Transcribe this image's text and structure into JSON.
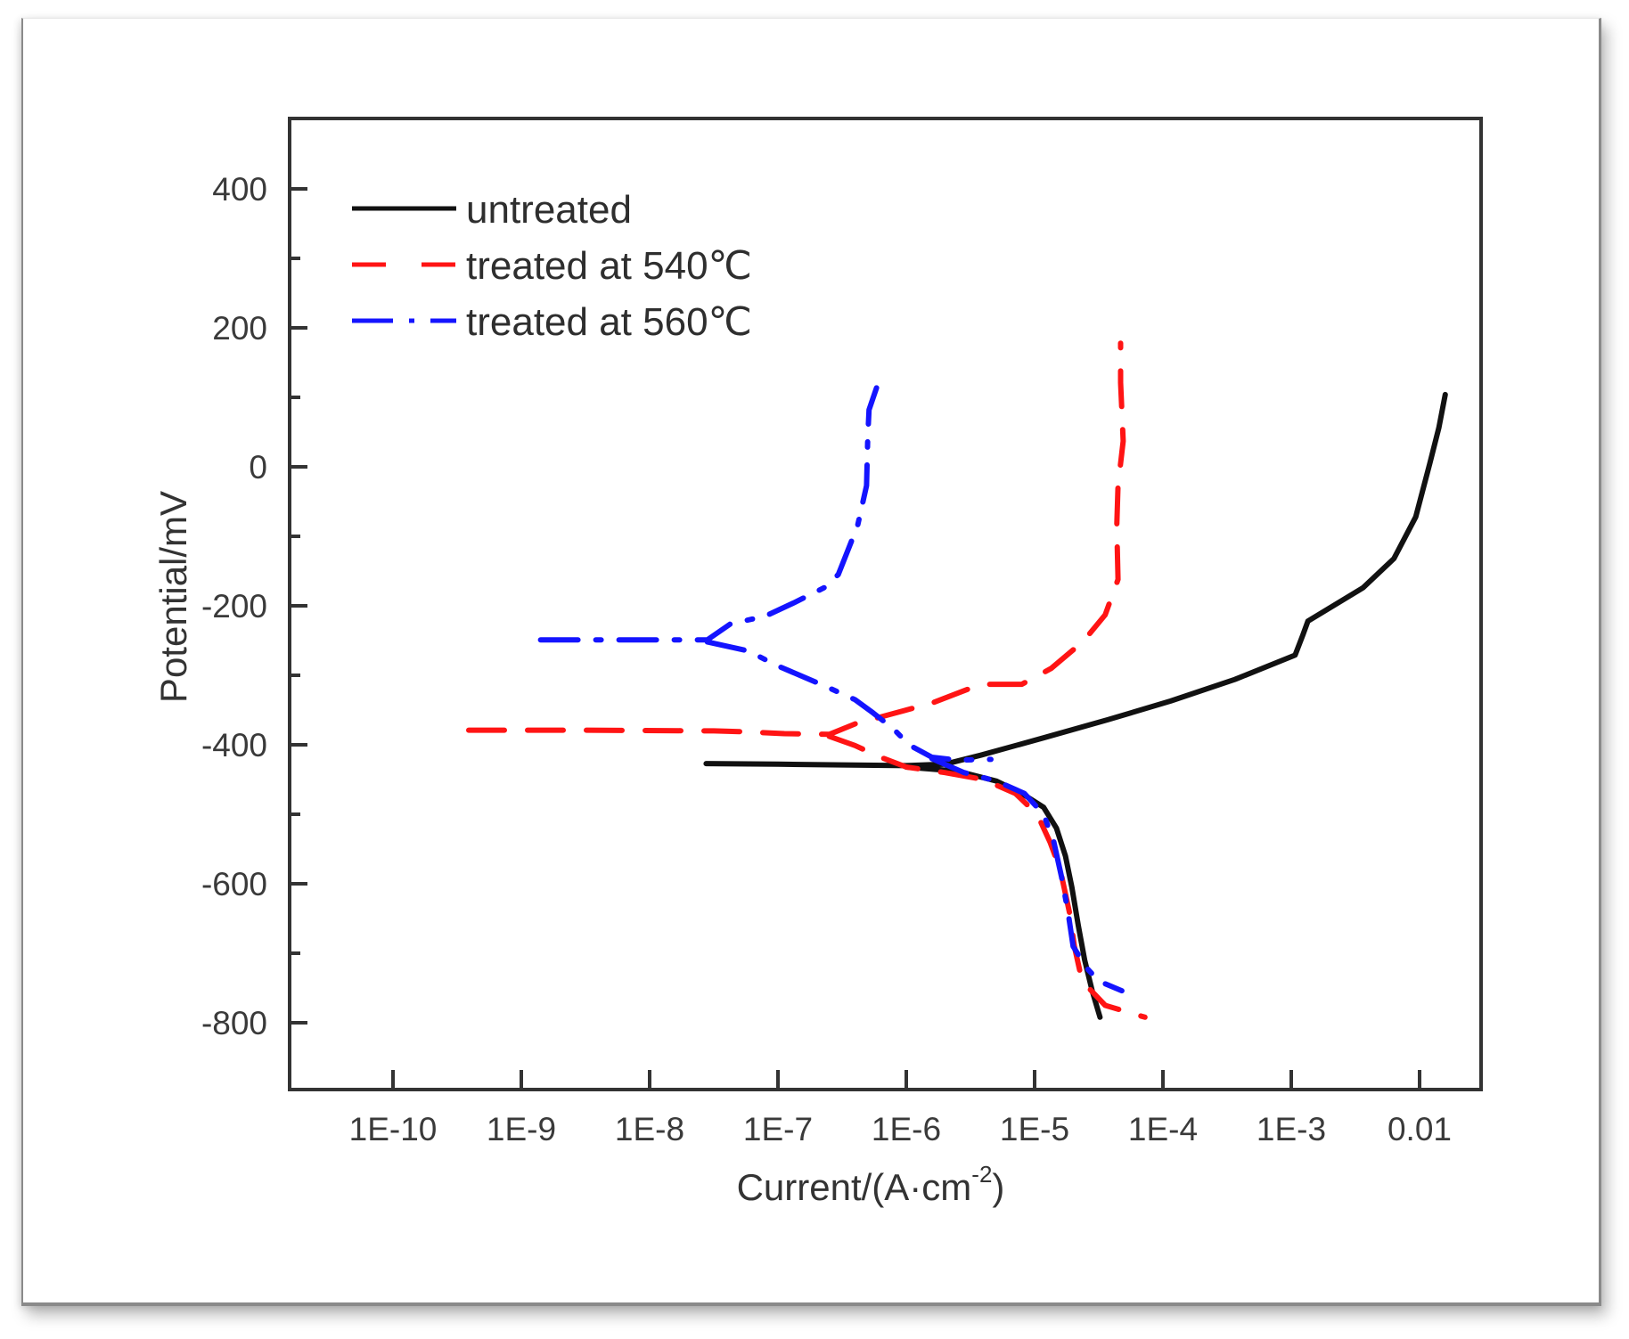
{
  "chart_data": {
    "type": "line",
    "title": "",
    "xlabel": "Current/(A·cm-2)",
    "xlabel_main": "Current/(A·cm",
    "xlabel_sup": "-2",
    "xlabel_close": ")",
    "ylabel": "Potential/mV",
    "xscale": "log",
    "xlim": [
      1.5e-11,
      0.03
    ],
    "ylim": [
      -900,
      500
    ],
    "grid": false,
    "legend_position": "upper left",
    "x_ticks": [
      {
        "value": -10,
        "label": "1E-10"
      },
      {
        "value": -9,
        "label": "1E-9"
      },
      {
        "value": -8,
        "label": "1E-8"
      },
      {
        "value": -7,
        "label": "1E-7"
      },
      {
        "value": -6,
        "label": "1E-6"
      },
      {
        "value": -5,
        "label": "1E-5"
      },
      {
        "value": -4,
        "label": "1E-4"
      },
      {
        "value": -3,
        "label": "1E-3"
      },
      {
        "value": -2,
        "label": "0.01"
      }
    ],
    "y_ticks": [
      {
        "value": 400,
        "label": "400"
      },
      {
        "value": 200,
        "label": "200"
      },
      {
        "value": 0,
        "label": "0"
      },
      {
        "value": -200,
        "label": "-200"
      },
      {
        "value": -400,
        "label": "-400"
      },
      {
        "value": -600,
        "label": "-600"
      },
      {
        "value": -800,
        "label": "-800"
      }
    ],
    "y_minor_ticks": [
      300,
      100,
      -100,
      -300,
      -500,
      -700
    ],
    "series": [
      {
        "name": "untreated",
        "color": "#111111",
        "style": "solid",
        "note": "x values are log10(current A/cm2), y in mV",
        "segments": [
          [
            [
              -7.56,
              -427
            ],
            [
              -7.0,
              -428
            ],
            [
              -6.5,
              -429
            ],
            [
              -6.0,
              -430
            ],
            [
              -5.7,
              -428
            ],
            [
              -5.42,
              -415
            ],
            [
              -4.93,
              -390
            ],
            [
              -4.43,
              -364
            ],
            [
              -3.94,
              -337
            ],
            [
              -3.44,
              -306
            ],
            [
              -2.97,
              -271
            ],
            [
              -2.91,
              -242
            ],
            [
              -2.87,
              -222
            ],
            [
              -2.44,
              -174
            ],
            [
              -2.2,
              -132
            ],
            [
              -2.03,
              -72
            ],
            [
              -1.92,
              5
            ],
            [
              -1.85,
              56
            ],
            [
              -1.8,
              104
            ]
          ],
          [
            [
              -6.0,
              -432
            ],
            [
              -5.6,
              -438
            ],
            [
              -5.3,
              -452
            ],
            [
              -5.1,
              -470
            ],
            [
              -4.93,
              -490
            ],
            [
              -4.83,
              -520
            ],
            [
              -4.76,
              -560
            ],
            [
              -4.71,
              -605
            ],
            [
              -4.66,
              -660
            ],
            [
              -4.61,
              -710
            ],
            [
              -4.55,
              -755
            ],
            [
              -4.49,
              -792
            ]
          ]
        ]
      },
      {
        "name": "treated at 540℃",
        "color": "#ff1414",
        "style": "dashed",
        "segments": [
          [
            [
              -9.41,
              -379
            ],
            [
              -8.5,
              -379
            ],
            [
              -7.5,
              -380
            ],
            [
              -7.3,
              -381
            ],
            [
              -6.95,
              -384
            ],
            [
              -6.6,
              -385
            ],
            [
              -6.4,
              -370
            ],
            [
              -6.1,
              -355
            ],
            [
              -5.8,
              -340
            ],
            [
              -5.42,
              -313
            ],
            [
              -5.1,
              -313
            ],
            [
              -4.87,
              -290
            ],
            [
              -4.62,
              -251
            ],
            [
              -4.45,
              -213
            ],
            [
              -4.35,
              -162
            ],
            [
              -4.36,
              -85
            ],
            [
              -4.35,
              -27
            ],
            [
              -4.31,
              37
            ],
            [
              -4.33,
              121
            ],
            [
              -4.33,
              178
            ]
          ],
          [
            [
              -6.6,
              -388
            ],
            [
              -6.4,
              -401
            ],
            [
              -6.2,
              -418
            ],
            [
              -6.0,
              -432
            ],
            [
              -5.7,
              -440
            ],
            [
              -5.4,
              -450
            ],
            [
              -5.15,
              -470
            ],
            [
              -4.98,
              -500
            ],
            [
              -4.88,
              -540
            ],
            [
              -4.8,
              -580
            ],
            [
              -4.73,
              -640
            ],
            [
              -4.69,
              -690
            ],
            [
              -4.63,
              -740
            ],
            [
              -4.45,
              -775
            ],
            [
              -4.14,
              -792
            ]
          ]
        ]
      },
      {
        "name": "treated at 560℃",
        "color": "#1414ff",
        "style": "dashdot",
        "segments": [
          [
            [
              -8.85,
              -249
            ],
            [
              -8.2,
              -249
            ],
            [
              -7.55,
              -249
            ],
            [
              -7.37,
              -226
            ],
            [
              -7.1,
              -215
            ],
            [
              -6.88,
              -196
            ],
            [
              -6.64,
              -174
            ],
            [
              -6.53,
              -155
            ],
            [
              -6.38,
              -85
            ],
            [
              -6.31,
              -27
            ],
            [
              -6.3,
              44
            ],
            [
              -6.29,
              82
            ],
            [
              -6.22,
              120
            ]
          ],
          [
            [
              -7.55,
              -252
            ],
            [
              -7.23,
              -265
            ],
            [
              -7.02,
              -285
            ],
            [
              -6.64,
              -315
            ],
            [
              -6.4,
              -335
            ],
            [
              -6.26,
              -354
            ],
            [
              -6.1,
              -377
            ],
            [
              -5.98,
              -400
            ],
            [
              -5.8,
              -418
            ],
            [
              -5.6,
              -422
            ],
            [
              -5.34,
              -421
            ]
          ],
          [
            [
              -5.8,
              -420
            ],
            [
              -5.55,
              -440
            ],
            [
              -5.3,
              -452
            ],
            [
              -5.08,
              -470
            ],
            [
              -4.93,
              -500
            ],
            [
              -4.85,
              -540
            ],
            [
              -4.79,
              -590
            ],
            [
              -4.74,
              -640
            ],
            [
              -4.7,
              -690
            ],
            [
              -4.6,
              -720
            ],
            [
              -4.5,
              -740
            ],
            [
              -4.32,
              -754
            ]
          ]
        ]
      }
    ]
  },
  "legend": {
    "items": [
      {
        "label": "untreated"
      },
      {
        "label": "treated at 540℃"
      },
      {
        "label": "treated at 560℃"
      }
    ]
  }
}
